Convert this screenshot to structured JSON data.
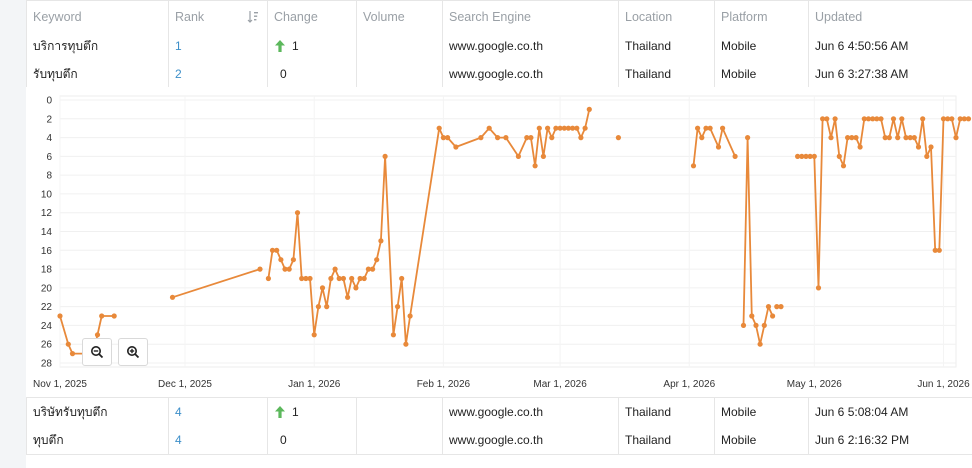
{
  "table": {
    "headers": {
      "keyword": "Keyword",
      "rank": "Rank",
      "change": "Change",
      "volume": "Volume",
      "search_engine": "Search Engine",
      "location": "Location",
      "platform": "Platform",
      "updated": "Updated"
    },
    "rows": [
      {
        "keyword": "บริการทุบตึก",
        "rank": "1",
        "change": "1",
        "change_dir": "up",
        "volume": "",
        "search_engine": "www.google.co.th",
        "location": "Thailand",
        "platform": "Mobile",
        "updated": "Jun 6 4:50:56 AM"
      },
      {
        "keyword": "รับทุบตึก",
        "rank": "2",
        "change": "0",
        "change_dir": "none",
        "volume": "",
        "search_engine": "www.google.co.th",
        "location": "Thailand",
        "platform": "Mobile",
        "updated": "Jun 6 3:27:38 AM"
      },
      {
        "keyword": "บริษัทรับทุบตึก",
        "rank": "4",
        "change": "1",
        "change_dir": "up",
        "volume": "",
        "search_engine": "www.google.co.th",
        "location": "Thailand",
        "platform": "Mobile",
        "updated": "Jun 6 5:08:04 AM"
      },
      {
        "keyword": "ทุบตึก",
        "rank": "4",
        "change": "0",
        "change_dir": "none",
        "volume": "",
        "search_engine": "www.google.co.th",
        "location": "Thailand",
        "platform": "Mobile",
        "updated": "Jun 6 2:16:32 PM"
      }
    ]
  },
  "colors": {
    "accent": "#e8893a",
    "link": "#3d8fc9",
    "up": "#5cb85c"
  },
  "chart_data": {
    "type": "line",
    "y_reversed": true,
    "ylim": [
      0,
      28
    ],
    "yticks": [
      "0",
      "2",
      "4",
      "6",
      "8",
      "10",
      "12",
      "14",
      "16",
      "18",
      "20",
      "22",
      "24",
      "26",
      "28"
    ],
    "xticks": [
      {
        "label": "Nov 1, 2025",
        "day": 0
      },
      {
        "label": "Dec 1, 2025",
        "day": 30
      },
      {
        "label": "Jan 1, 2026",
        "day": 61
      },
      {
        "label": "Feb 1, 2026",
        "day": 92
      },
      {
        "label": "Mar 1, 2026",
        "day": 120
      },
      {
        "label": "Apr 1, 2026",
        "day": 151
      },
      {
        "label": "May 1, 2026",
        "day": 181
      },
      {
        "label": "Jun 1, 2026",
        "day": 212
      }
    ],
    "series": [
      {
        "color": "#e8893a",
        "segments": [
          [
            [
              0,
              23
            ],
            [
              2,
              26
            ],
            [
              3,
              27
            ],
            [
              8,
              27
            ],
            [
              9,
              25
            ],
            [
              10,
              23
            ],
            [
              13,
              23
            ]
          ],
          [
            [
              27,
              21
            ],
            [
              48,
              18
            ]
          ],
          [
            [
              50,
              19
            ],
            [
              51,
              16
            ],
            [
              52,
              16
            ],
            [
              53,
              17
            ],
            [
              54,
              18
            ],
            [
              55,
              18
            ],
            [
              56,
              17
            ],
            [
              57,
              12
            ],
            [
              58,
              19
            ],
            [
              59,
              19
            ],
            [
              60,
              19
            ],
            [
              61,
              25
            ],
            [
              62,
              22
            ],
            [
              63,
              20
            ],
            [
              64,
              22
            ],
            [
              65,
              19
            ],
            [
              66,
              18
            ],
            [
              67,
              19
            ],
            [
              68,
              19
            ],
            [
              69,
              21
            ],
            [
              70,
              19
            ],
            [
              71,
              20
            ],
            [
              72,
              19
            ],
            [
              73,
              19
            ],
            [
              74,
              18
            ],
            [
              75,
              18
            ],
            [
              76,
              17
            ],
            [
              77,
              15
            ],
            [
              78,
              6
            ],
            [
              80,
              25
            ],
            [
              81,
              22
            ],
            [
              82,
              19
            ],
            [
              83,
              26
            ],
            [
              84,
              23
            ],
            [
              91,
              3
            ],
            [
              92,
              4
            ],
            [
              93,
              4
            ],
            [
              95,
              5
            ],
            [
              101,
              4
            ],
            [
              103,
              3
            ],
            [
              105,
              4
            ],
            [
              107,
              4
            ],
            [
              110,
              6
            ],
            [
              112,
              4
            ],
            [
              113,
              4
            ],
            [
              114,
              7
            ],
            [
              115,
              3
            ],
            [
              116,
              6
            ],
            [
              117,
              3
            ],
            [
              118,
              4
            ],
            [
              119,
              3
            ],
            [
              120,
              3
            ],
            [
              121,
              3
            ],
            [
              122,
              3
            ],
            [
              123,
              3
            ],
            [
              124,
              3
            ],
            [
              125,
              4
            ],
            [
              126,
              3
            ],
            [
              127,
              1
            ]
          ],
          [
            [
              134,
              4
            ]
          ],
          [
            [
              152,
              7
            ],
            [
              153,
              3
            ],
            [
              154,
              4
            ],
            [
              155,
              3
            ],
            [
              156,
              3
            ],
            [
              158,
              5
            ],
            [
              159,
              3
            ],
            [
              162,
              6
            ]
          ],
          [
            [
              164,
              24
            ],
            [
              165,
              4
            ],
            [
              166,
              23
            ],
            [
              167,
              24
            ],
            [
              168,
              26
            ],
            [
              169,
              24
            ],
            [
              170,
              22
            ],
            [
              171,
              23
            ]
          ],
          [
            [
              172,
              22
            ],
            [
              173,
              22
            ]
          ],
          [
            [
              177,
              6
            ],
            [
              178,
              6
            ],
            [
              179,
              6
            ],
            [
              180,
              6
            ],
            [
              181,
              6
            ],
            [
              182,
              20
            ],
            [
              183,
              2
            ],
            [
              184,
              2
            ],
            [
              185,
              4
            ],
            [
              186,
              2
            ],
            [
              187,
              6
            ],
            [
              188,
              7
            ],
            [
              189,
              4
            ],
            [
              190,
              4
            ],
            [
              191,
              4
            ],
            [
              192,
              5
            ],
            [
              193,
              2
            ],
            [
              194,
              2
            ],
            [
              195,
              2
            ],
            [
              196,
              2
            ],
            [
              197,
              2
            ],
            [
              198,
              4
            ],
            [
              199,
              4
            ],
            [
              200,
              2
            ],
            [
              201,
              4
            ],
            [
              202,
              2
            ],
            [
              203,
              4
            ],
            [
              204,
              4
            ],
            [
              205,
              4
            ],
            [
              206,
              5
            ],
            [
              207,
              2
            ],
            [
              208,
              6
            ],
            [
              209,
              5
            ],
            [
              210,
              16
            ],
            [
              211,
              16
            ],
            [
              212,
              2
            ],
            [
              213,
              2
            ],
            [
              214,
              2
            ],
            [
              215,
              4
            ],
            [
              216,
              2
            ],
            [
              217,
              2
            ],
            [
              218,
              2
            ]
          ]
        ]
      }
    ]
  }
}
